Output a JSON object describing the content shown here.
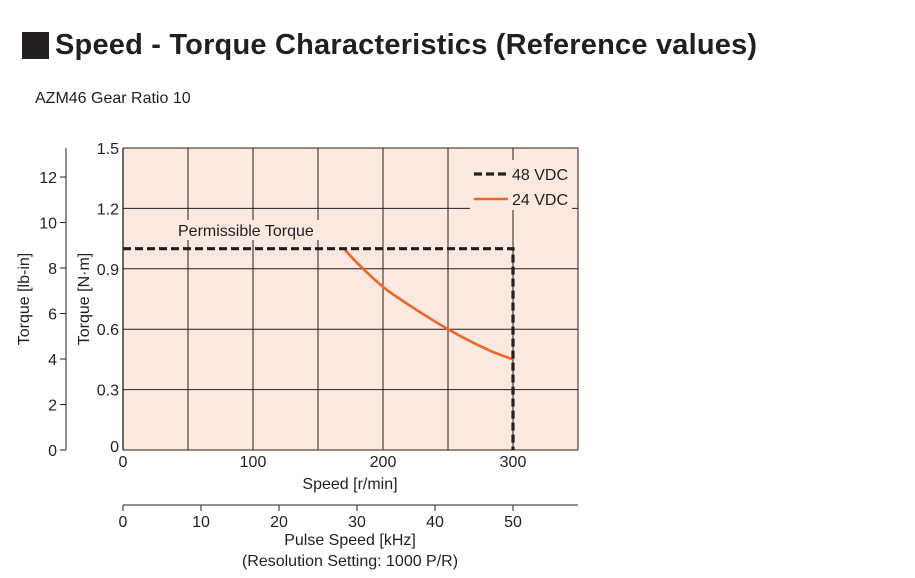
{
  "header": {
    "title": "Speed - Torque Characteristics (Reference values)",
    "subtitle": "AZM46  Gear Ratio 10"
  },
  "colors": {
    "plot_background": "#fbe9df",
    "grid": "#231f20",
    "vdc48": "#231f20",
    "vdc24": "#ef6428"
  },
  "chart_data": {
    "type": "line",
    "xlabel": "Speed [r/min]",
    "ylabel": "Torque [N·m]",
    "ylabel_secondary": "Torque [lb-in]",
    "xlabel_secondary": "Pulse Speed [kHz]",
    "xlabel_secondary_note": "(Resolution Setting: 1000 P/R)",
    "xlim": [
      0,
      350
    ],
    "ylim": [
      0,
      1.5
    ],
    "x_ticks": [
      0,
      100,
      200,
      300
    ],
    "y_ticks": [
      0,
      0.3,
      0.6,
      0.9,
      1.2,
      1.5
    ],
    "y_ticks_labels": [
      "0",
      "0.3",
      "0.6",
      "0.9",
      "1.2",
      "1.5"
    ],
    "y2_ticks": [
      0,
      2,
      4,
      6,
      8,
      10,
      12
    ],
    "y2_lim": [
      0,
      13.276
    ],
    "x2_ticks": [
      0,
      10,
      20,
      30,
      40,
      50
    ],
    "x2_lim": [
      0,
      58.33
    ],
    "grid": true,
    "legend_position": "top-right",
    "annotations": [
      {
        "text": "Permissible Torque"
      }
    ],
    "series": [
      {
        "name": "48 VDC",
        "style": "dashed",
        "x": [
          0,
          300,
          300
        ],
        "y": [
          1.0,
          1.0,
          0
        ]
      },
      {
        "name": "24 VDC",
        "style": "solid",
        "x": [
          170,
          180,
          200,
          220,
          250,
          280,
          300
        ],
        "y": [
          1.0,
          0.93,
          0.81,
          0.72,
          0.6,
          0.5,
          0.45
        ]
      }
    ]
  }
}
